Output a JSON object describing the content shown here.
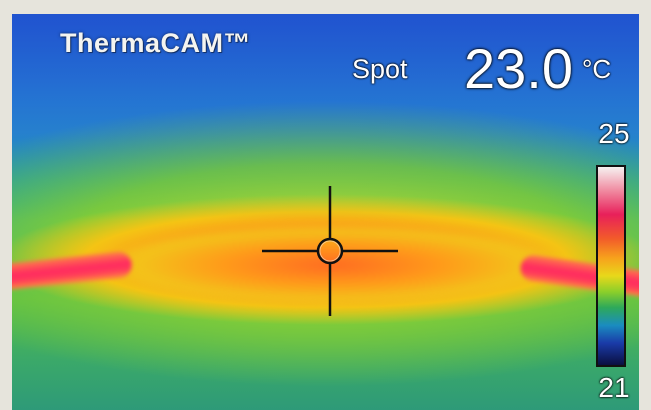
{
  "camera": {
    "brand": "ThermaCAM™"
  },
  "spot_meter": {
    "label": "Spot",
    "value": "23.0",
    "unit": "°C"
  },
  "temperature_scale": {
    "max": "25",
    "min": "21"
  },
  "icons": [
    "crosshair-icon"
  ]
}
